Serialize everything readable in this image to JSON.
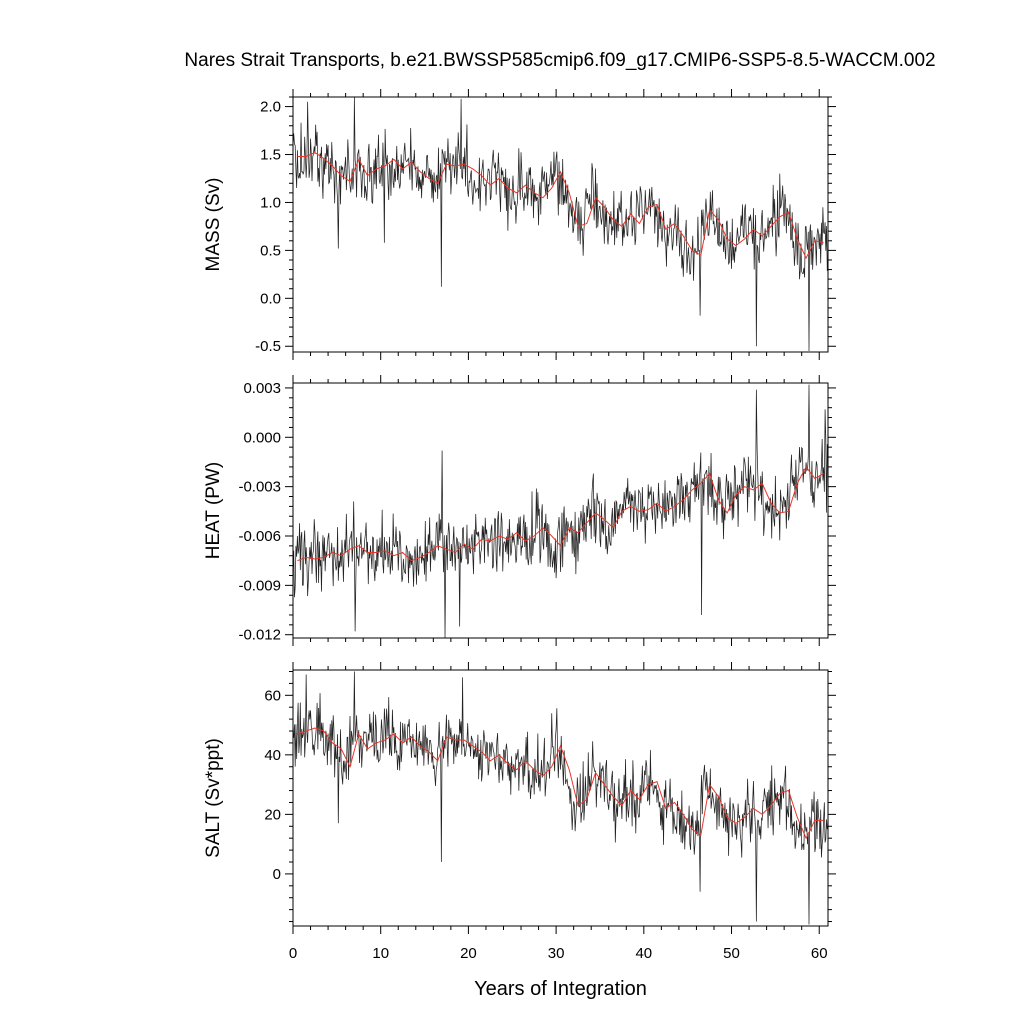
{
  "figure": {
    "title": "Nares Strait Transports, b.e21.BWSSP585cmip6.f09_g17.CMIP6-SSP5-8.5-WACCM.002"
  },
  "chart_data": [
    {
      "type": "line",
      "title": "",
      "xlabel": "",
      "ylabel": "MASS (Sv)",
      "xlim": [
        0,
        61
      ],
      "ylim": [
        -0.56,
        2.1
      ],
      "x_ticks": [
        0,
        10,
        20,
        30,
        40,
        50,
        60
      ],
      "y_ticks": [
        -0.5,
        0.0,
        0.5,
        1.0,
        1.5,
        2.0
      ],
      "y_tick_labels": [
        "-0.5",
        "0.0",
        "0.5",
        "1.0",
        "1.5",
        "2.0"
      ],
      "series": [
        {
          "color": "#222222",
          "style": "monthly",
          "y_start": 1.47,
          "y_end": 0.62,
          "spread": 0.22,
          "spikes": [
            [
              1.7,
              2.05
            ],
            [
              5.2,
              0.52
            ],
            [
              7.0,
              2.1
            ],
            [
              10.4,
              0.58
            ],
            [
              16.9,
              0.12
            ],
            [
              19.2,
              2.08
            ],
            [
              46.4,
              -0.18
            ],
            [
              52.8,
              -0.5
            ],
            [
              58.8,
              -0.55
            ]
          ]
        },
        {
          "color": "#e8362a",
          "style": "annual",
          "values": [
            1.48,
            1.48,
            1.52,
            1.46,
            1.38,
            1.28,
            1.22,
            1.45,
            1.28,
            1.35,
            1.38,
            1.45,
            1.35,
            1.42,
            1.32,
            1.25,
            1.2,
            1.4,
            1.38,
            1.4,
            1.35,
            1.28,
            1.18,
            1.25,
            1.15,
            1.1,
            1.18,
            1.1,
            1.05,
            1.15,
            1.32,
            1.1,
            0.75,
            0.78,
            1.05,
            0.95,
            0.82,
            0.75,
            0.88,
            0.78,
            0.95,
            0.98,
            0.72,
            0.78,
            0.65,
            0.5,
            0.45,
            0.92,
            0.82,
            0.62,
            0.55,
            0.62,
            0.72,
            0.65,
            0.75,
            0.85,
            0.9,
            0.62,
            0.42,
            0.6,
            0.58
          ]
        }
      ]
    },
    {
      "type": "line",
      "title": "",
      "xlabel": "",
      "ylabel": "HEAT (PW)",
      "xlim": [
        0,
        61
      ],
      "ylim": [
        -0.0122,
        0.0033
      ],
      "x_ticks": [
        0,
        10,
        20,
        30,
        40,
        50,
        60
      ],
      "y_ticks": [
        -0.012,
        -0.009,
        -0.006,
        -0.003,
        0.0,
        0.003
      ],
      "y_tick_labels": [
        "-0.012",
        "-0.009",
        "-0.006",
        "-0.003",
        "0.000",
        "0.003"
      ],
      "series": [
        {
          "color": "#222222",
          "style": "monthly",
          "y_start": -0.0075,
          "y_end": -0.0025,
          "spread": 0.0013,
          "spikes": [
            [
              7.1,
              -0.0118
            ],
            [
              17.0,
              -0.0008
            ],
            [
              17.3,
              -0.0122
            ],
            [
              19.0,
              -0.0115
            ],
            [
              46.6,
              -0.0108
            ],
            [
              52.8,
              0.0029
            ],
            [
              58.8,
              0.0032
            ],
            [
              60.7,
              0.0017
            ]
          ]
        },
        {
          "color": "#e8362a",
          "style": "annual",
          "values": [
            -0.0075,
            -0.0073,
            -0.0074,
            -0.0073,
            -0.007,
            -0.0072,
            -0.0068,
            -0.0066,
            -0.007,
            -0.007,
            -0.0069,
            -0.0072,
            -0.007,
            -0.0075,
            -0.0073,
            -0.007,
            -0.0066,
            -0.0068,
            -0.007,
            -0.0065,
            -0.0068,
            -0.0062,
            -0.0063,
            -0.006,
            -0.0062,
            -0.0058,
            -0.0063,
            -0.006,
            -0.0055,
            -0.006,
            -0.0066,
            -0.0055,
            -0.0058,
            -0.0052,
            -0.0046,
            -0.005,
            -0.0055,
            -0.0045,
            -0.0042,
            -0.0045,
            -0.0044,
            -0.004,
            -0.0045,
            -0.0042,
            -0.0038,
            -0.0032,
            -0.0028,
            -0.0022,
            -0.0038,
            -0.0046,
            -0.0035,
            -0.003,
            -0.0032,
            -0.0028,
            -0.004,
            -0.0046,
            -0.0045,
            -0.0028,
            -0.0018,
            -0.0025,
            -0.0022
          ]
        }
      ]
    },
    {
      "type": "line",
      "title": "",
      "xlabel": "Years of Integration",
      "ylabel": "SALT (Sv*ppt)",
      "xlim": [
        0,
        61
      ],
      "ylim": [
        -17.5,
        68.5
      ],
      "x_ticks": [
        0,
        10,
        20,
        30,
        40,
        50,
        60
      ],
      "x_tick_labels": [
        "0",
        "10",
        "20",
        "30",
        "40",
        "50",
        "60"
      ],
      "y_ticks": [
        0,
        20,
        40,
        60
      ],
      "y_tick_labels": [
        "0",
        "20",
        "40",
        "60"
      ],
      "series": [
        {
          "color": "#222222",
          "style": "monthly",
          "y_start": 47,
          "y_end": 18,
          "spread": 7,
          "spikes": [
            [
              1.5,
              67
            ],
            [
              5.2,
              17
            ],
            [
              7.0,
              68
            ],
            [
              16.9,
              4
            ],
            [
              19.3,
              66
            ],
            [
              46.4,
              -6
            ],
            [
              52.8,
              -16
            ],
            [
              58.8,
              -17
            ]
          ]
        },
        {
          "color": "#e8362a",
          "style": "annual",
          "values": [
            47,
            48,
            49,
            48,
            44,
            42,
            36,
            47,
            42,
            44,
            45,
            47,
            44,
            46,
            43,
            41,
            38,
            46,
            45,
            45,
            43,
            41,
            38,
            40,
            37,
            35,
            38,
            35,
            33,
            36,
            43,
            35,
            23,
            25,
            34,
            30,
            26,
            23,
            28,
            25,
            30,
            31,
            22,
            24,
            20,
            15,
            13,
            30,
            26,
            19,
            17,
            19,
            22,
            20,
            23,
            27,
            28,
            19,
            12,
            18,
            18
          ]
        }
      ]
    }
  ]
}
